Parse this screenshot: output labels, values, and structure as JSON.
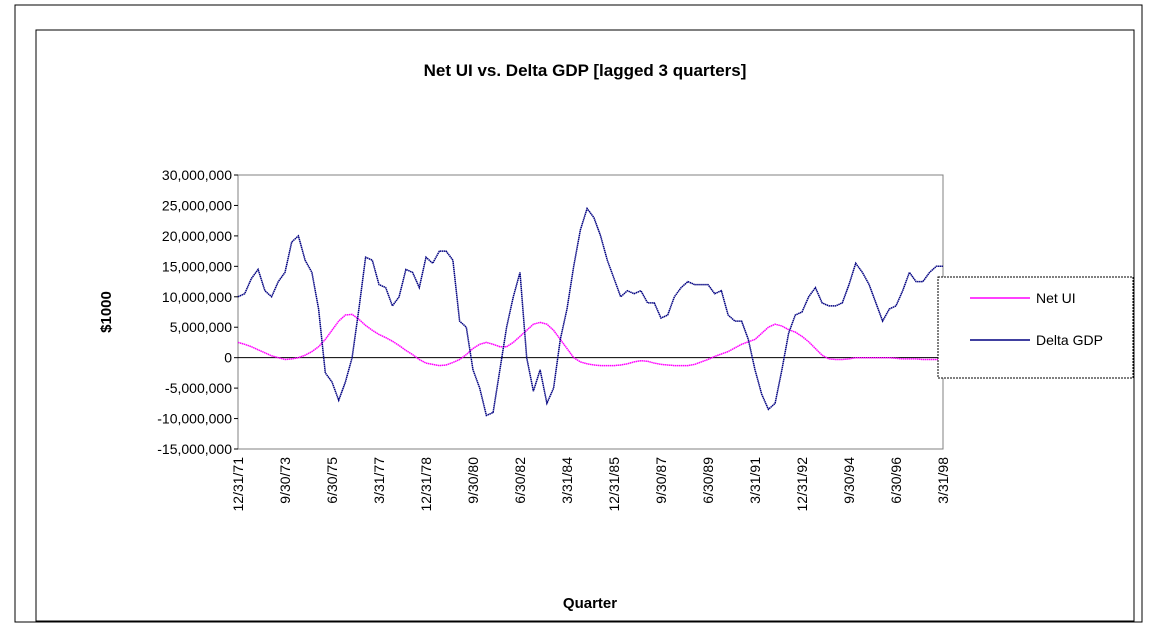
{
  "chart_data": {
    "type": "line",
    "title": "Net UI vs. Delta GDP [lagged 3 quarters]",
    "x_label": "Quarter",
    "y_label": "$1000",
    "categories": [
      "12/31/71",
      null,
      null,
      null,
      null,
      null,
      null,
      "9/30/73",
      null,
      null,
      null,
      null,
      null,
      null,
      "6/30/75",
      null,
      null,
      null,
      null,
      null,
      null,
      "3/31/77",
      null,
      null,
      null,
      null,
      null,
      null,
      "12/31/78",
      null,
      null,
      null,
      null,
      null,
      null,
      "9/30/80",
      null,
      null,
      null,
      null,
      null,
      null,
      "6/30/82",
      null,
      null,
      null,
      null,
      null,
      null,
      "3/31/84",
      null,
      null,
      null,
      null,
      null,
      null,
      "12/31/85",
      null,
      null,
      null,
      null,
      null,
      null,
      "9/30/87",
      null,
      null,
      null,
      null,
      null,
      null,
      "6/30/89",
      null,
      null,
      null,
      null,
      null,
      null,
      "3/31/91",
      null,
      null,
      null,
      null,
      null,
      null,
      "12/31/92",
      null,
      null,
      null,
      null,
      null,
      null,
      "9/30/94",
      null,
      null,
      null,
      null,
      null,
      null,
      "6/30/96",
      null,
      null,
      null,
      null,
      null,
      null,
      "3/31/98"
    ],
    "series": [
      {
        "name": "Net UI",
        "color": "#ff00ff",
        "values": [
          2500000,
          2200000,
          1800000,
          1300000,
          800000,
          300000,
          0,
          -300000,
          -200000,
          0,
          400000,
          1000000,
          1800000,
          3000000,
          4500000,
          6000000,
          7000000,
          7100000,
          6300000,
          5300000,
          4500000,
          3800000,
          3300000,
          2700000,
          2000000,
          1200000,
          500000,
          -300000,
          -900000,
          -1100000,
          -1300000,
          -1200000,
          -800000,
          -300000,
          500000,
          1500000,
          2200000,
          2500000,
          2200000,
          1800000,
          1800000,
          2500000,
          3500000,
          4500000,
          5500000,
          5800000,
          5500000,
          4500000,
          3000000,
          1500000,
          0,
          -700000,
          -1000000,
          -1200000,
          -1300000,
          -1300000,
          -1300000,
          -1200000,
          -1000000,
          -700000,
          -500000,
          -600000,
          -900000,
          -1100000,
          -1200000,
          -1300000,
          -1300000,
          -1300000,
          -1100000,
          -700000,
          -300000,
          200000,
          600000,
          1000000,
          1600000,
          2200000,
          2600000,
          3000000,
          4000000,
          5000000,
          5500000,
          5200000,
          4600000,
          4200000,
          3500000,
          2600000,
          1500000,
          400000,
          -200000,
          -300000,
          -300000,
          -200000,
          0,
          0,
          0,
          0,
          0,
          0,
          -100000,
          -200000,
          -200000,
          -200000,
          -300000,
          -300000,
          -300000,
          -300000
        ]
      },
      {
        "name": "Delta GDP",
        "color": "#000080",
        "values": [
          10000000,
          10500000,
          13000000,
          14500000,
          11000000,
          10000000,
          12500000,
          14000000,
          19000000,
          20000000,
          16000000,
          14000000,
          8000000,
          -2500000,
          -4000000,
          -7000000,
          -4000000,
          0,
          8000000,
          16500000,
          16000000,
          12000000,
          11500000,
          8500000,
          10000000,
          14500000,
          14000000,
          11500000,
          16500000,
          15500000,
          17500000,
          17500000,
          16000000,
          6000000,
          5000000,
          -2000000,
          -5000000,
          -9500000,
          -9000000,
          -2000000,
          5000000,
          10000000,
          14000000,
          0,
          -5500000,
          -2000000,
          -7500000,
          -5000000,
          3000000,
          8000000,
          15000000,
          21000000,
          24500000,
          23000000,
          20000000,
          16000000,
          13000000,
          10000000,
          11000000,
          10500000,
          11000000,
          9000000,
          9000000,
          6500000,
          7000000,
          10000000,
          11500000,
          12500000,
          12000000,
          12000000,
          12000000,
          10500000,
          11000000,
          7000000,
          6000000,
          6000000,
          3000000,
          -2000000,
          -6000000,
          -8500000,
          -7500000,
          -2000000,
          4000000,
          7000000,
          7500000,
          10000000,
          11500000,
          9000000,
          8500000,
          8500000,
          9000000,
          12000000,
          15500000,
          14000000,
          12000000,
          9000000,
          6000000,
          8000000,
          8500000,
          11000000,
          14000000,
          12500000,
          12500000,
          14000000,
          15000000,
          15000000
        ]
      }
    ],
    "ylim": [
      -15000000,
      30000000
    ],
    "yticks": [
      {
        "value": -15000000,
        "label": "-15,000,000"
      },
      {
        "value": -10000000,
        "label": "-10,000,000"
      },
      {
        "value": -5000000,
        "label": "-5,000,000"
      },
      0,
      {
        "value": 5000000,
        "label": "5,000,000"
      },
      {
        "value": 10000000,
        "label": "10,000,000"
      },
      {
        "value": 15000000,
        "label": "15,000,000"
      },
      {
        "value": 20000000,
        "label": "20,000,000"
      },
      {
        "value": 25000000,
        "label": "25,000,000"
      },
      {
        "value": 30000000,
        "label": "30,000,000"
      }
    ],
    "grid": false,
    "legend": "right"
  }
}
